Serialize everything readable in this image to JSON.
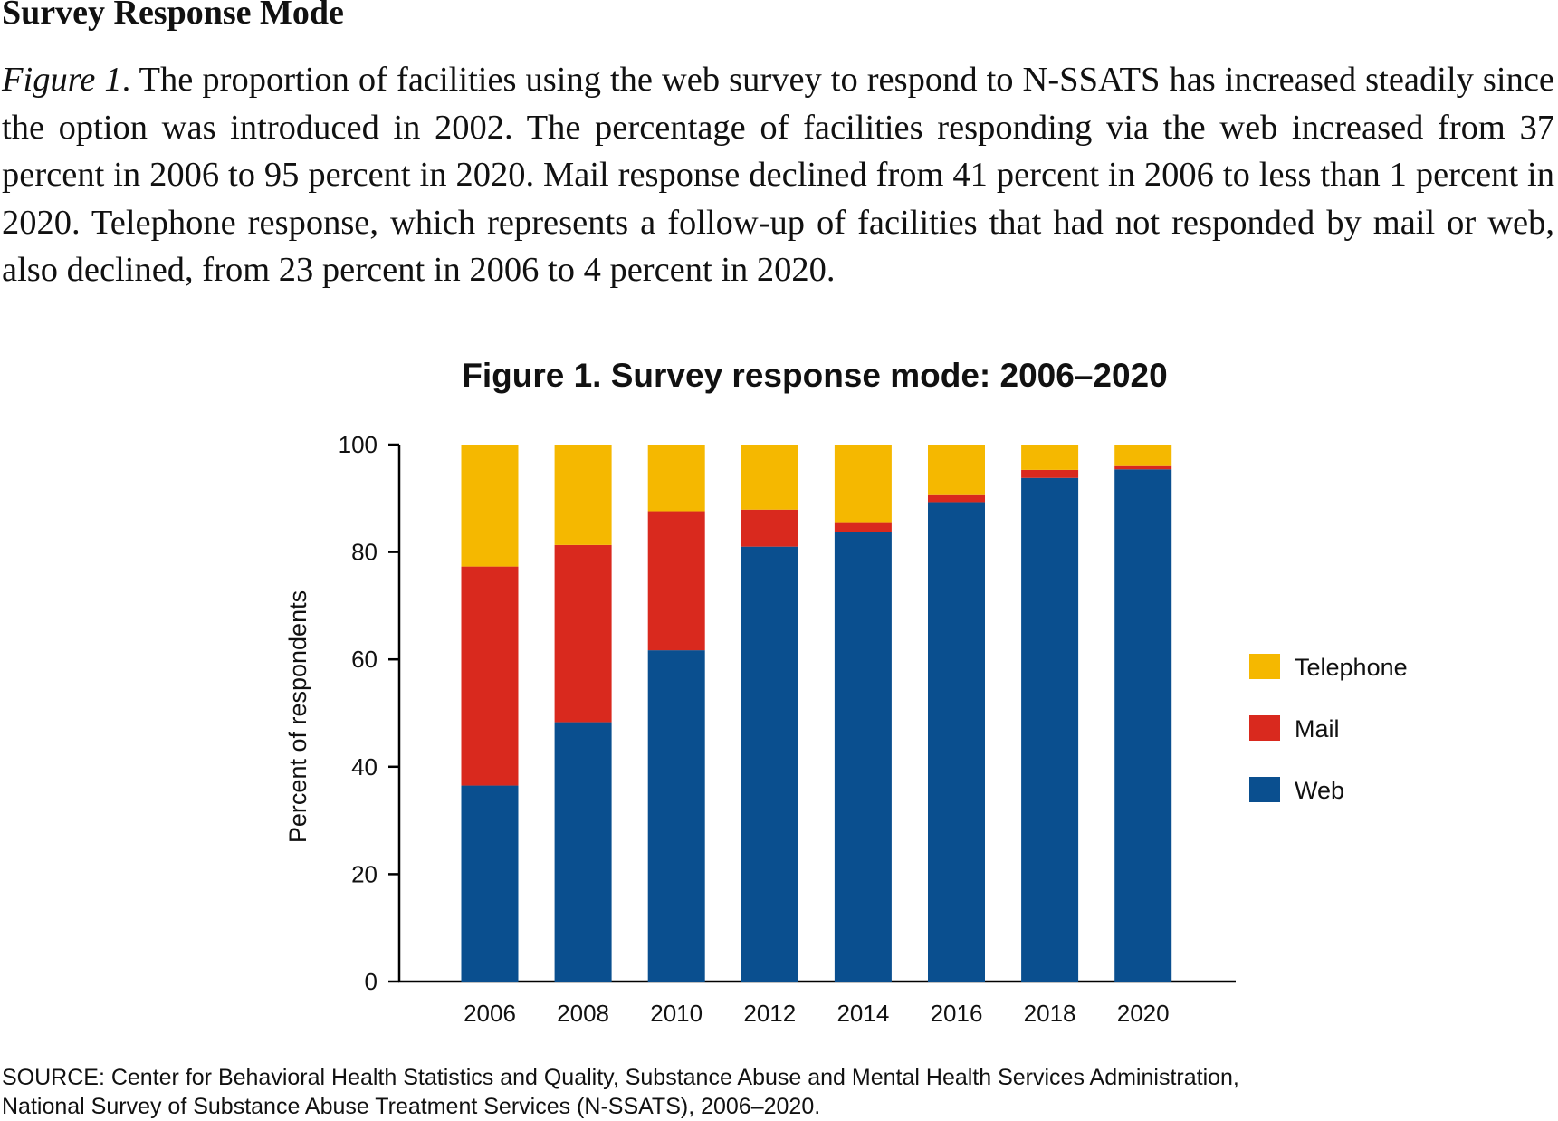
{
  "section_heading": "Survey Response Mode",
  "caption": {
    "label": "Figure 1",
    "text": ". The proportion of facilities using the web survey to respond to N-SSATS has increased steadily since the option was introduced in 2002. The percentage of facilities responding via the web increased from 37 percent in 2006 to 95 percent in 2020. Mail response declined from 41 percent in 2006 to less than 1 percent in 2020. Telephone response, which represents a follow-up of facilities that had not responded by mail or web, also declined, from 23 percent in 2006 to 4 percent in 2020."
  },
  "source": {
    "line1": "SOURCE: Center for Behavioral Health Statistics and Quality, Substance Abuse and Mental Health Services Administration,",
    "line2": "National Survey of Substance Abuse Treatment Services (N-SSATS), 2006–2020."
  },
  "chart_data": {
    "type": "bar",
    "stacked": true,
    "title": "Figure 1. Survey response mode: 2006–2020",
    "xlabel": "",
    "ylabel": "Percent of  respondents",
    "ylim": [
      0,
      100
    ],
    "yticks": [
      0,
      20,
      40,
      60,
      80,
      100
    ],
    "grid": false,
    "legend_position": "right",
    "categories": [
      "2006",
      "2008",
      "2010",
      "2012",
      "2014",
      "2016",
      "2018",
      "2020"
    ],
    "series": [
      {
        "name": "Web",
        "color": "#0a4f8f",
        "values": [
          36.5,
          48.3,
          61.7,
          81.0,
          83.8,
          89.3,
          93.8,
          95.4
        ]
      },
      {
        "name": "Mail",
        "color": "#d9291e",
        "values": [
          40.8,
          33.0,
          25.9,
          6.9,
          1.6,
          1.3,
          1.5,
          0.6
        ]
      },
      {
        "name": "Telephone",
        "color": "#f5b800",
        "values": [
          22.7,
          18.7,
          12.4,
          12.1,
          14.6,
          9.4,
          4.7,
          4.0
        ]
      }
    ],
    "legend_order": [
      "Telephone",
      "Mail",
      "Web"
    ]
  }
}
